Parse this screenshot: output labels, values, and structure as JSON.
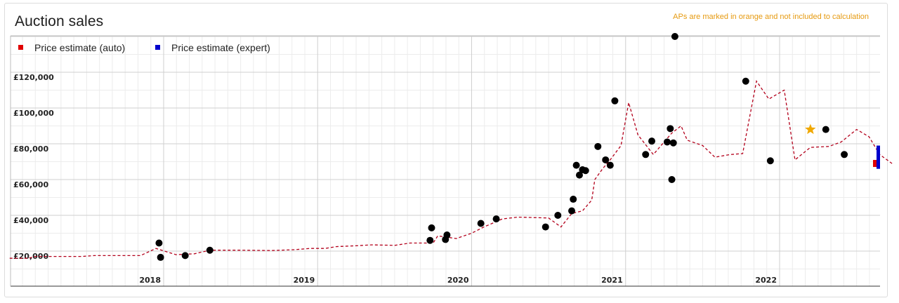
{
  "header": {
    "title": "Auction sales",
    "note": "APs are marked in orange and not included to calculation"
  },
  "chart_data": {
    "type": "line",
    "title": "Auction sales",
    "ylim": [
      5000,
      145000
    ],
    "xlim": [
      2017.0,
      2022.75
    ],
    "grid": true,
    "legend_position": "top-left",
    "colors": {
      "auto": "#e00000",
      "expert": "#0000cc",
      "points": "#000000",
      "ap": "#f0a800",
      "grid_major": "#cfcfcf",
      "grid_minor": "#ececec"
    },
    "legend": [
      {
        "name": "Price estimate (auto)",
        "color": "#e00000"
      },
      {
        "name": "Price estimate (expert)",
        "color": "#0000cc"
      }
    ],
    "y_ticks": [
      {
        "value": 20000,
        "label": "£20,000"
      },
      {
        "value": 40000,
        "label": "£40,000"
      },
      {
        "value": 60000,
        "label": "£60,000"
      },
      {
        "value": 80000,
        "label": "£80,000"
      },
      {
        "value": 100000,
        "label": "£100,000"
      },
      {
        "value": 120000,
        "label": "£120,000"
      }
    ],
    "x_ticks": [
      {
        "value": 2018,
        "label": "2018"
      },
      {
        "value": 2019,
        "label": "2019"
      },
      {
        "value": 2020,
        "label": "2020"
      },
      {
        "value": 2021,
        "label": "2021"
      },
      {
        "value": 2022,
        "label": "2022"
      }
    ],
    "series": [
      {
        "name": "Price estimate (auto)",
        "style": "dashed",
        "points": [
          [
            2017.0,
            16000
          ],
          [
            2017.12,
            16000
          ],
          [
            2017.17,
            17000
          ],
          [
            2017.47,
            17000
          ],
          [
            2017.55,
            17500
          ],
          [
            2017.85,
            17500
          ],
          [
            2017.95,
            21500
          ],
          [
            2018.08,
            18000
          ],
          [
            2018.2,
            18500
          ],
          [
            2018.3,
            20500
          ],
          [
            2018.5,
            20500
          ],
          [
            2018.7,
            20300
          ],
          [
            2018.85,
            20800
          ],
          [
            2018.95,
            21500
          ],
          [
            2019.05,
            21500
          ],
          [
            2019.12,
            22500
          ],
          [
            2019.25,
            23000
          ],
          [
            2019.35,
            23500
          ],
          [
            2019.5,
            23200
          ],
          [
            2019.6,
            24500
          ],
          [
            2019.75,
            24500
          ],
          [
            2019.78,
            28500
          ],
          [
            2019.9,
            27000
          ],
          [
            2020.0,
            30000
          ],
          [
            2020.08,
            33500
          ],
          [
            2020.2,
            38000
          ],
          [
            2020.3,
            39000
          ],
          [
            2020.5,
            38500
          ],
          [
            2020.58,
            33500
          ],
          [
            2020.65,
            41000
          ],
          [
            2020.72,
            42500
          ],
          [
            2020.78,
            48500
          ],
          [
            2020.8,
            60000
          ],
          [
            2020.85,
            66000
          ],
          [
            2020.9,
            71000
          ],
          [
            2020.97,
            79000
          ],
          [
            2021.02,
            103000
          ],
          [
            2021.08,
            85000
          ],
          [
            2021.18,
            74000
          ],
          [
            2021.3,
            86000
          ],
          [
            2021.36,
            90000
          ],
          [
            2021.4,
            82000
          ],
          [
            2021.5,
            79000
          ],
          [
            2021.58,
            72500
          ],
          [
            2021.68,
            74000
          ],
          [
            2021.76,
            74500
          ],
          [
            2021.85,
            115000
          ],
          [
            2021.93,
            105000
          ],
          [
            2022.03,
            110000
          ],
          [
            2022.1,
            71000
          ],
          [
            2022.2,
            78000
          ],
          [
            2022.32,
            78500
          ],
          [
            2022.4,
            81000
          ],
          [
            2022.5,
            88000
          ],
          [
            2022.58,
            84000
          ],
          [
            2022.65,
            74000
          ],
          [
            2022.73,
            69000
          ]
        ]
      }
    ],
    "sales_points": [
      [
        2017.97,
        24500
      ],
      [
        2017.98,
        16500
      ],
      [
        2018.14,
        17500
      ],
      [
        2018.3,
        20500
      ],
      [
        2019.73,
        26000
      ],
      [
        2019.74,
        33000
      ],
      [
        2019.83,
        26500
      ],
      [
        2019.84,
        29000
      ],
      [
        2020.06,
        35500
      ],
      [
        2020.16,
        38000
      ],
      [
        2020.48,
        33500
      ],
      [
        2020.56,
        40000
      ],
      [
        2020.65,
        42500
      ],
      [
        2020.66,
        49000
      ],
      [
        2020.68,
        68000
      ],
      [
        2020.7,
        62500
      ],
      [
        2020.72,
        65500
      ],
      [
        2020.74,
        65000
      ],
      [
        2020.82,
        78500
      ],
      [
        2020.87,
        71000
      ],
      [
        2020.9,
        68000
      ],
      [
        2020.93,
        104000
      ],
      [
        2021.13,
        74000
      ],
      [
        2021.17,
        81500
      ],
      [
        2021.27,
        81000
      ],
      [
        2021.29,
        88500
      ],
      [
        2021.3,
        60000
      ],
      [
        2021.31,
        80500
      ],
      [
        2021.32,
        140000
      ],
      [
        2021.78,
        115000
      ],
      [
        2021.94,
        70500
      ],
      [
        2022.3,
        88000
      ],
      [
        2022.42,
        74000
      ]
    ],
    "ap_points": [
      [
        2022.2,
        88000
      ]
    ],
    "estimate_auto": 69000,
    "estimate_expert_range": [
      66000,
      79000
    ]
  }
}
